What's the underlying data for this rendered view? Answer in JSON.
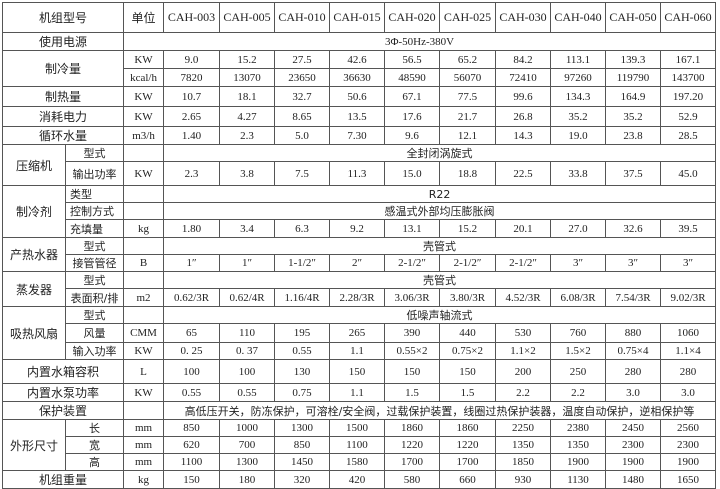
{
  "header": {
    "label": "机组型号",
    "unit": "单位",
    "models": [
      "CAH-003",
      "CAH-005",
      "CAH-010",
      "CAH-015",
      "CAH-020",
      "CAH-025",
      "CAH-030",
      "CAH-040",
      "CAH-050",
      "CAH-060"
    ]
  },
  "power_supply": {
    "label": "使用电源",
    "value": "3Φ-50Hz-380V"
  },
  "cooling": {
    "label": "制冷量",
    "rows": [
      {
        "unit": "KW",
        "values": [
          "9.0",
          "15.2",
          "27.5",
          "42.6",
          "56.5",
          "65.2",
          "84.2",
          "113.1",
          "139.3",
          "167.1"
        ]
      },
      {
        "unit": "kcal/h",
        "values": [
          "7820",
          "13070",
          "23650",
          "36630",
          "48590",
          "56070",
          "72410",
          "97260",
          "119790",
          "143700"
        ]
      }
    ]
  },
  "heating": {
    "label": "制热量",
    "unit": "KW",
    "values": [
      "10.7",
      "18.1",
      "32.7",
      "50.6",
      "67.1",
      "77.5",
      "99.6",
      "134.3",
      "164.9",
      "197.20"
    ]
  },
  "consumption": {
    "label": "消耗电力",
    "unit": "KW",
    "values": [
      "2.65",
      "4.27",
      "8.65",
      "13.5",
      "17.6",
      "21.7",
      "26.8",
      "35.2",
      "35.2",
      "52.9"
    ]
  },
  "water_flow": {
    "label": "循环水量",
    "unit": "m3/h",
    "values": [
      "1.40",
      "2.3",
      "5.0",
      "7.30",
      "9.6",
      "12.1",
      "14.3",
      "19.0",
      "23.8",
      "28.5"
    ]
  },
  "compressor": {
    "label": "压缩机",
    "type": {
      "label": "型式",
      "value": "全封闭涡旋式"
    },
    "output": {
      "label": "输出功率",
      "unit": "KW",
      "values": [
        "2.3",
        "3.8",
        "7.5",
        "11.3",
        "15.0",
        "18.8",
        "22.5",
        "33.8",
        "37.5",
        "45.0"
      ]
    }
  },
  "refrigerant": {
    "label": "制冷剂",
    "type": {
      "label": "类型",
      "value": "R22"
    },
    "control": {
      "label": "控制方式",
      "value": "感温式外部均压膨胀阀"
    },
    "charge": {
      "label": "充填量",
      "unit": "kg",
      "values": [
        "1.80",
        "3.4",
        "6.3",
        "9.2",
        "13.1",
        "15.2",
        "20.1",
        "27.0",
        "32.6",
        "39.5"
      ]
    }
  },
  "heater": {
    "label": "产热水器",
    "type": {
      "label": "型式",
      "value": "壳管式"
    },
    "pipe": {
      "label": "接管管径",
      "unit": "B",
      "values": [
        "1″",
        "1″",
        "1-1/2″",
        "2″",
        "2-1/2″",
        "2-1/2″",
        "2-1/2″",
        "3″",
        "3″",
        "3″"
      ]
    }
  },
  "evaporator": {
    "label": "蒸发器",
    "type": {
      "label": "型式",
      "value": "壳管式"
    },
    "area": {
      "label": "表面积/排",
      "unit": "m2",
      "values": [
        "0.62/3R",
        "0.62/4R",
        "1.16/4R",
        "2.28/3R",
        "3.06/3R",
        "3.80/3R",
        "4.52/3R",
        "6.08/3R",
        "7.54/3R",
        "9.02/3R"
      ]
    }
  },
  "fan": {
    "label": "吸热风扇",
    "type": {
      "label": "型式",
      "value": "低噪声轴流式"
    },
    "airflow": {
      "label": "风量",
      "unit": "CMM",
      "values": [
        "65",
        "110",
        "195",
        "265",
        "390",
        "440",
        "530",
        "760",
        "880",
        "1060"
      ]
    },
    "input": {
      "label": "输入功率",
      "unit": "KW",
      "values": [
        "0. 25",
        "0. 37",
        "0.55",
        "1.1",
        "0.55×2",
        "0.75×2",
        "1.1×2",
        "1.5×2",
        "0.75×4",
        "1.1×4"
      ]
    }
  },
  "tank": {
    "label": "内置水箱容积",
    "unit": "L",
    "values": [
      "100",
      "100",
      "130",
      "150",
      "150",
      "150",
      "200",
      "250",
      "280",
      "280"
    ]
  },
  "pump": {
    "label": "内置水泵功率",
    "unit": "KW",
    "values": [
      "0.55",
      "0.55",
      "0.75",
      "1.1",
      "1.5",
      "1.5",
      "2.2",
      "2.2",
      "3.0",
      "3.0"
    ]
  },
  "protection": {
    "label": "保护装置",
    "value": "高低压开关，防冻保护，可溶栓/安全阀，过载保护装置，线圈过热保护装器，温度自动保护，逆相保护等"
  },
  "dimensions": {
    "label": "外形尺寸",
    "rows": [
      {
        "label": "长",
        "unit": "mm",
        "values": [
          "850",
          "1000",
          "1300",
          "1500",
          "1860",
          "1860",
          "2250",
          "2380",
          "2450",
          "2560"
        ]
      },
      {
        "label": "宽",
        "unit": "mm",
        "values": [
          "620",
          "700",
          "850",
          "1100",
          "1220",
          "1220",
          "1350",
          "1350",
          "2300",
          "2300"
        ]
      },
      {
        "label": "高",
        "unit": "mm",
        "values": [
          "1100",
          "1300",
          "1450",
          "1580",
          "1700",
          "1700",
          "1850",
          "1900",
          "1900",
          "1900"
        ]
      }
    ]
  },
  "weight": {
    "label": "机组重量",
    "unit": "kg",
    "values": [
      "150",
      "180",
      "320",
      "420",
      "580",
      "660",
      "930",
      "1130",
      "1480",
      "1650"
    ]
  }
}
